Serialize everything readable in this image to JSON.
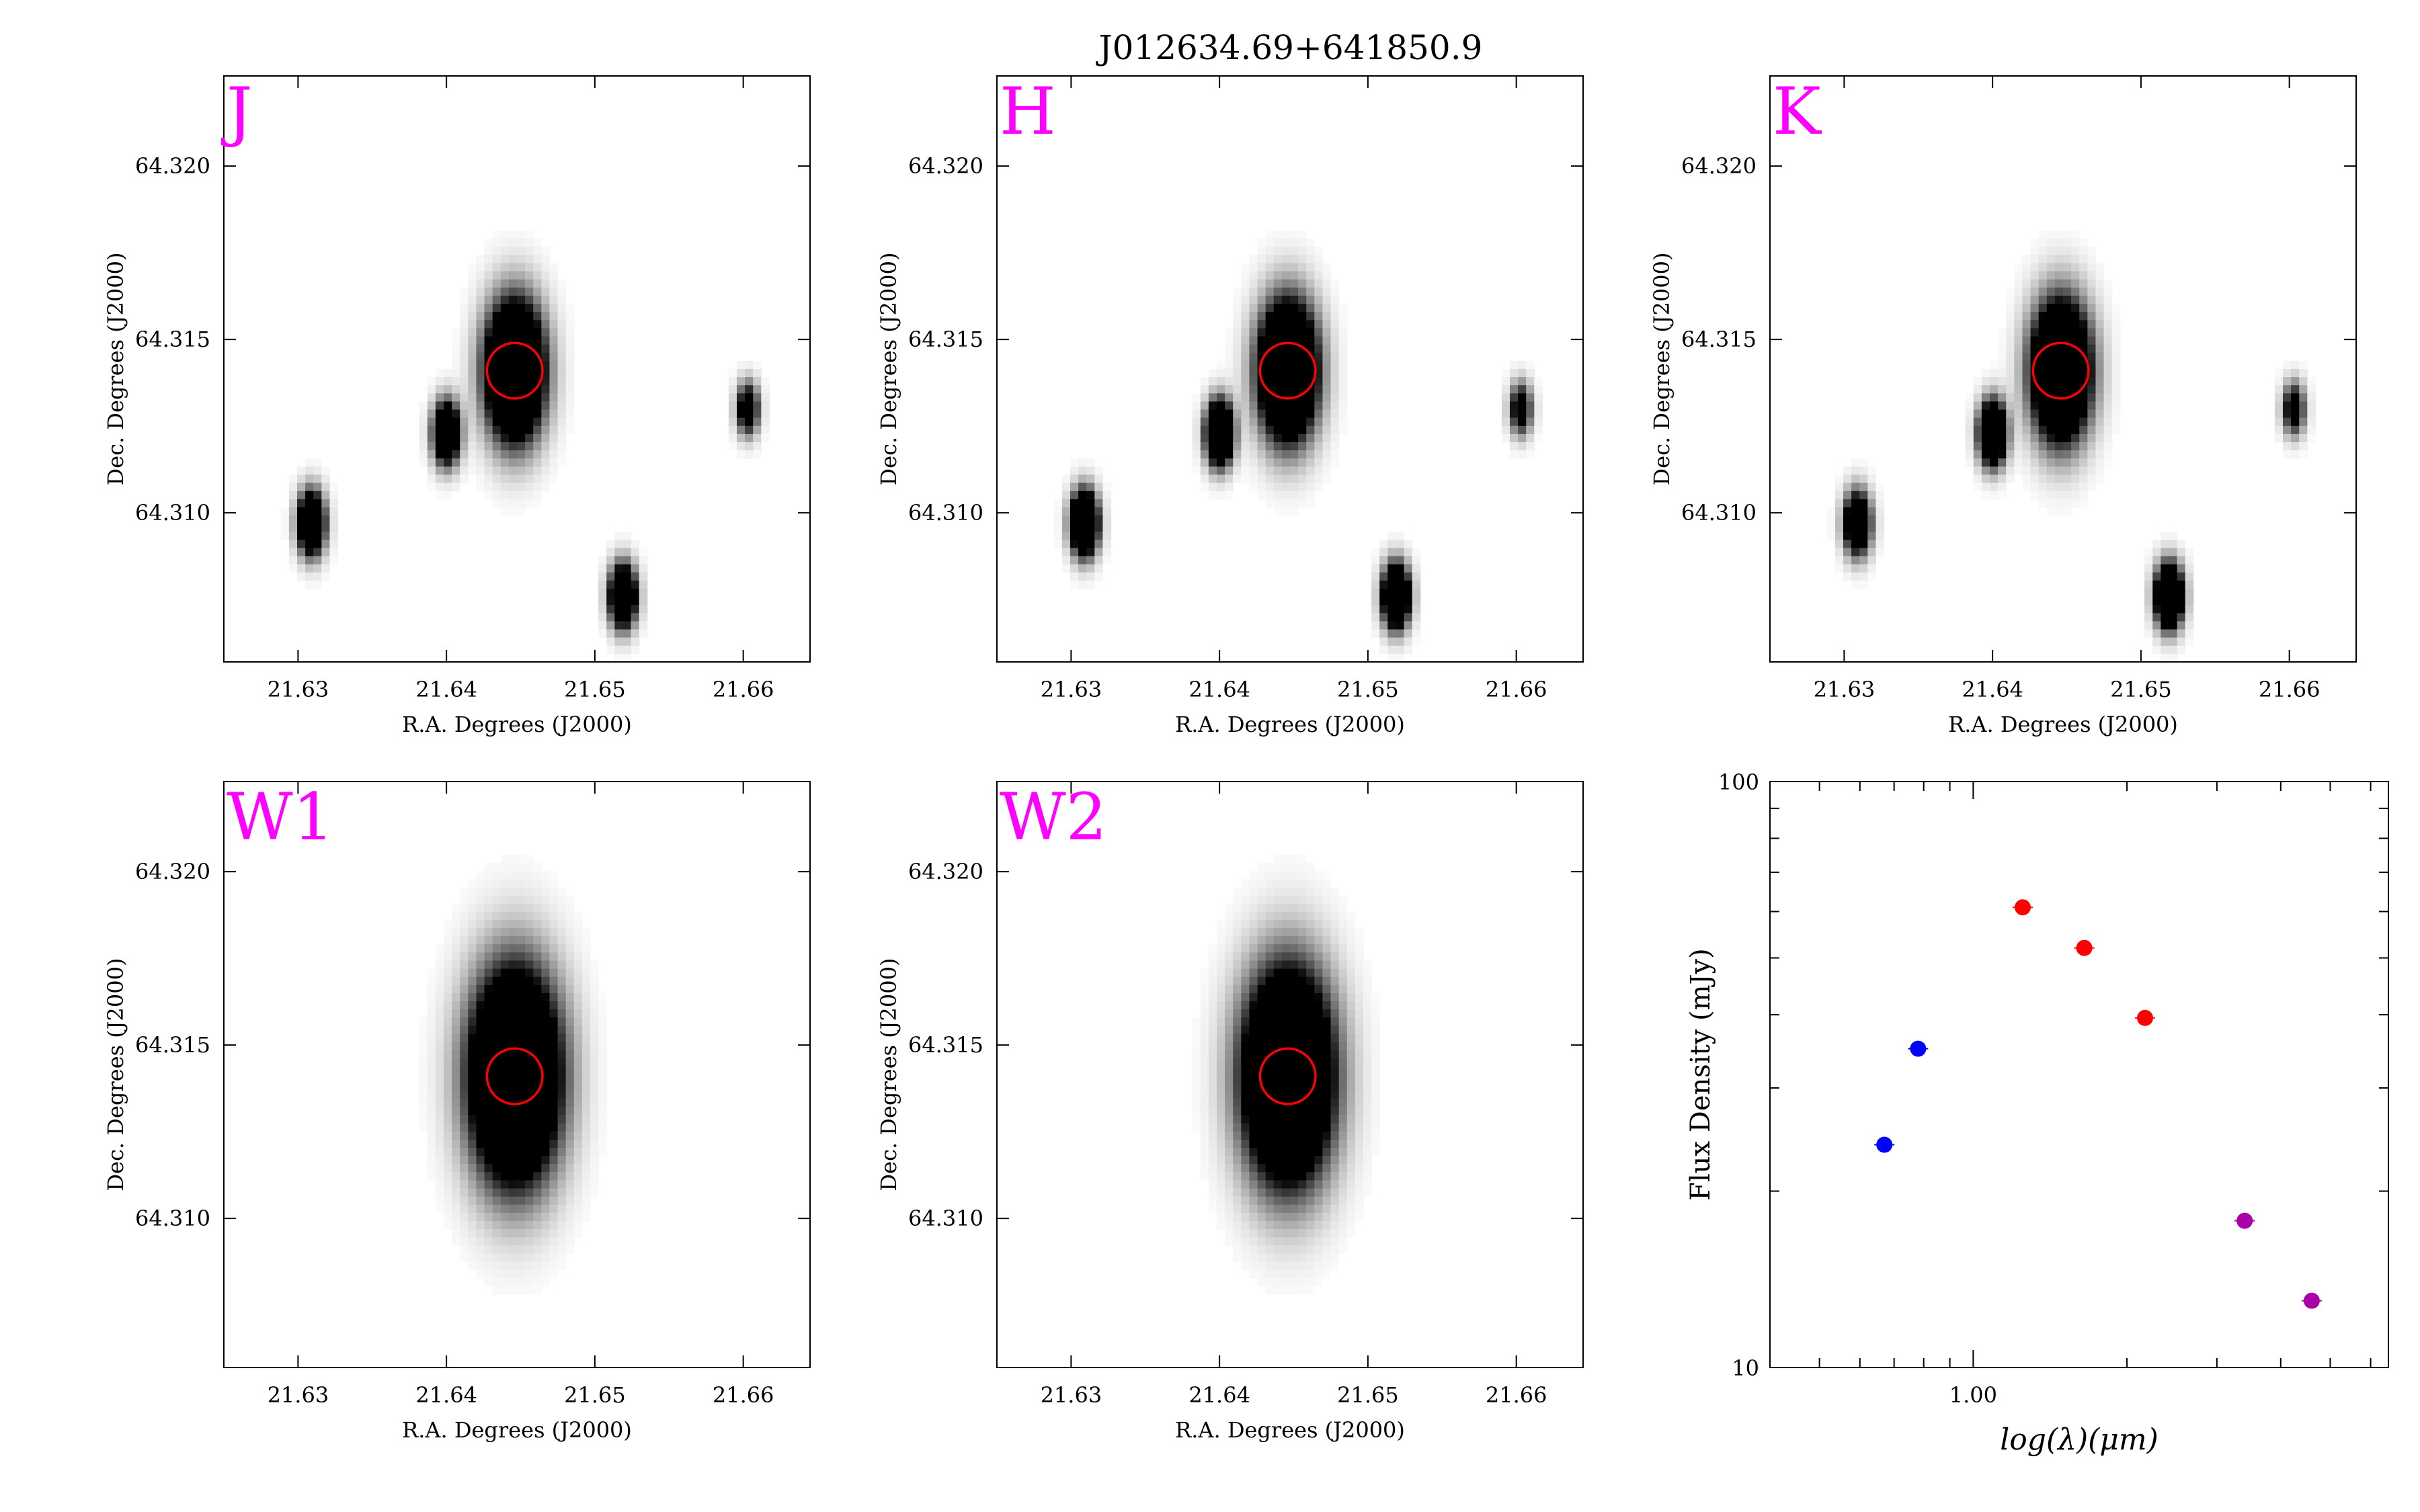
{
  "title": "J012634.69+641850.9",
  "colors": {
    "band_label": "#ff00ff",
    "aperture": "#ff0000",
    "optical_points": "#0000ff",
    "nir_points": "#ff0000",
    "wise_points": "#aa00aa"
  },
  "panels": [
    {
      "band": "J",
      "xlabel": "R.A. Degrees (J2000)",
      "ylabel": "Dec. Degrees (J2000)",
      "xticks": [
        "21.63",
        "21.64",
        "21.65",
        "21.66"
      ],
      "yticks": [
        "64.310",
        "64.315",
        "64.320"
      ]
    },
    {
      "band": "H",
      "xlabel": "R.A. Degrees (J2000)",
      "ylabel": "Dec. Degrees (J2000)",
      "xticks": [
        "21.63",
        "21.64",
        "21.65",
        "21.66"
      ],
      "yticks": [
        "64.310",
        "64.315",
        "64.320"
      ]
    },
    {
      "band": "K",
      "xlabel": "R.A. Degrees (J2000)",
      "ylabel": "Dec. Degrees (J2000)",
      "xticks": [
        "21.63",
        "21.64",
        "21.65",
        "21.66"
      ],
      "yticks": [
        "64.310",
        "64.315",
        "64.320"
      ]
    },
    {
      "band": "W1",
      "xlabel": "R.A. Degrees (J2000)",
      "ylabel": "Dec. Degrees (J2000)",
      "xticks": [
        "21.63",
        "21.64",
        "21.65",
        "21.66"
      ],
      "yticks": [
        "64.310",
        "64.315",
        "64.320"
      ]
    },
    {
      "band": "W2",
      "xlabel": "R.A. Degrees (J2000)",
      "ylabel": "Dec. Degrees (J2000)",
      "xticks": [
        "21.63",
        "21.64",
        "21.65",
        "21.66"
      ],
      "yticks": [
        "64.310",
        "64.315",
        "64.320"
      ]
    }
  ],
  "sed": {
    "xlabel": "log(λ)(μm)",
    "ylabel": "Flux Density (mJy)",
    "xtick_label": "1.00",
    "ytick_labels": [
      "10",
      "100"
    ]
  },
  "chart_data": [
    {
      "type": "image",
      "panel": "J",
      "xlim": [
        21.625,
        21.6645
      ],
      "ylim": [
        64.3057,
        64.3226
      ],
      "target": {
        "ra": 21.6446,
        "dec": 64.3141,
        "aperture_radius_deg": 0.0008
      },
      "sources": [
        {
          "ra": 21.6446,
          "dec": 64.3141,
          "peak": 1.0,
          "sigma_deg": 0.0013
        },
        {
          "ra": 21.64,
          "dec": 64.3123,
          "peak": 0.75,
          "sigma_deg": 0.0006
        },
        {
          "ra": 21.6309,
          "dec": 64.3097,
          "peak": 0.8,
          "sigma_deg": 0.0006
        },
        {
          "ra": 21.6519,
          "dec": 64.3076,
          "peak": 0.8,
          "sigma_deg": 0.0006
        },
        {
          "ra": 21.6603,
          "dec": 64.313,
          "peak": 0.5,
          "sigma_deg": 0.0005
        }
      ]
    },
    {
      "type": "image",
      "panel": "H",
      "xlim": [
        21.625,
        21.6645
      ],
      "ylim": [
        64.3057,
        64.3226
      ],
      "target": {
        "ra": 21.6446,
        "dec": 64.3141,
        "aperture_radius_deg": 0.0008
      },
      "sources": [
        {
          "ra": 21.6446,
          "dec": 64.3141,
          "peak": 1.0,
          "sigma_deg": 0.0013
        },
        {
          "ra": 21.64,
          "dec": 64.3123,
          "peak": 0.95,
          "sigma_deg": 0.0006
        },
        {
          "ra": 21.6309,
          "dec": 64.3097,
          "peak": 0.95,
          "sigma_deg": 0.0006
        },
        {
          "ra": 21.6519,
          "dec": 64.3076,
          "peak": 0.9,
          "sigma_deg": 0.0006
        },
        {
          "ra": 21.6603,
          "dec": 64.313,
          "peak": 0.45,
          "sigma_deg": 0.0005
        }
      ]
    },
    {
      "type": "image",
      "panel": "K",
      "xlim": [
        21.625,
        21.6645
      ],
      "ylim": [
        64.3057,
        64.3226
      ],
      "target": {
        "ra": 21.6446,
        "dec": 64.3141,
        "aperture_radius_deg": 0.0008
      },
      "sources": [
        {
          "ra": 21.6446,
          "dec": 64.3141,
          "peak": 1.0,
          "sigma_deg": 0.0013
        },
        {
          "ra": 21.64,
          "dec": 64.3123,
          "peak": 0.9,
          "sigma_deg": 0.0006
        },
        {
          "ra": 21.6309,
          "dec": 64.3097,
          "peak": 0.7,
          "sigma_deg": 0.0006
        },
        {
          "ra": 21.6519,
          "dec": 64.3076,
          "peak": 0.95,
          "sigma_deg": 0.0006
        },
        {
          "ra": 21.6603,
          "dec": 64.313,
          "peak": 0.45,
          "sigma_deg": 0.0005
        }
      ]
    },
    {
      "type": "image",
      "panel": "W1",
      "xlim": [
        21.625,
        21.6645
      ],
      "ylim": [
        64.3057,
        64.3226
      ],
      "target": {
        "ra": 21.6446,
        "dec": 64.3141,
        "aperture_radius_deg": 0.0008
      },
      "sources": [
        {
          "ra": 21.6446,
          "dec": 64.3141,
          "peak": 1.0,
          "sigma_deg": 0.002
        }
      ]
    },
    {
      "type": "image",
      "panel": "W2",
      "xlim": [
        21.625,
        21.6645
      ],
      "ylim": [
        64.3057,
        64.3226
      ],
      "target": {
        "ra": 21.6446,
        "dec": 64.3141,
        "aperture_radius_deg": 0.0008
      },
      "sources": [
        {
          "ra": 21.6446,
          "dec": 64.3141,
          "peak": 1.0,
          "sigma_deg": 0.002
        }
      ]
    },
    {
      "type": "scatter",
      "panel": "SED",
      "xscale": "log",
      "yscale": "log",
      "xlim": [
        0.4,
        6.5
      ],
      "ylim": [
        10,
        100
      ],
      "series": [
        {
          "color": "#0000ff",
          "x": [
            0.67,
            0.78
          ],
          "y": [
            24.0,
            35.0
          ]
        },
        {
          "color": "#ff0000",
          "x": [
            1.25,
            1.65,
            2.17
          ],
          "y": [
            61.0,
            52.0,
            39.5
          ]
        },
        {
          "color": "#aa00aa",
          "x": [
            3.4,
            4.6
          ],
          "y": [
            17.8,
            13.0
          ]
        }
      ]
    }
  ]
}
